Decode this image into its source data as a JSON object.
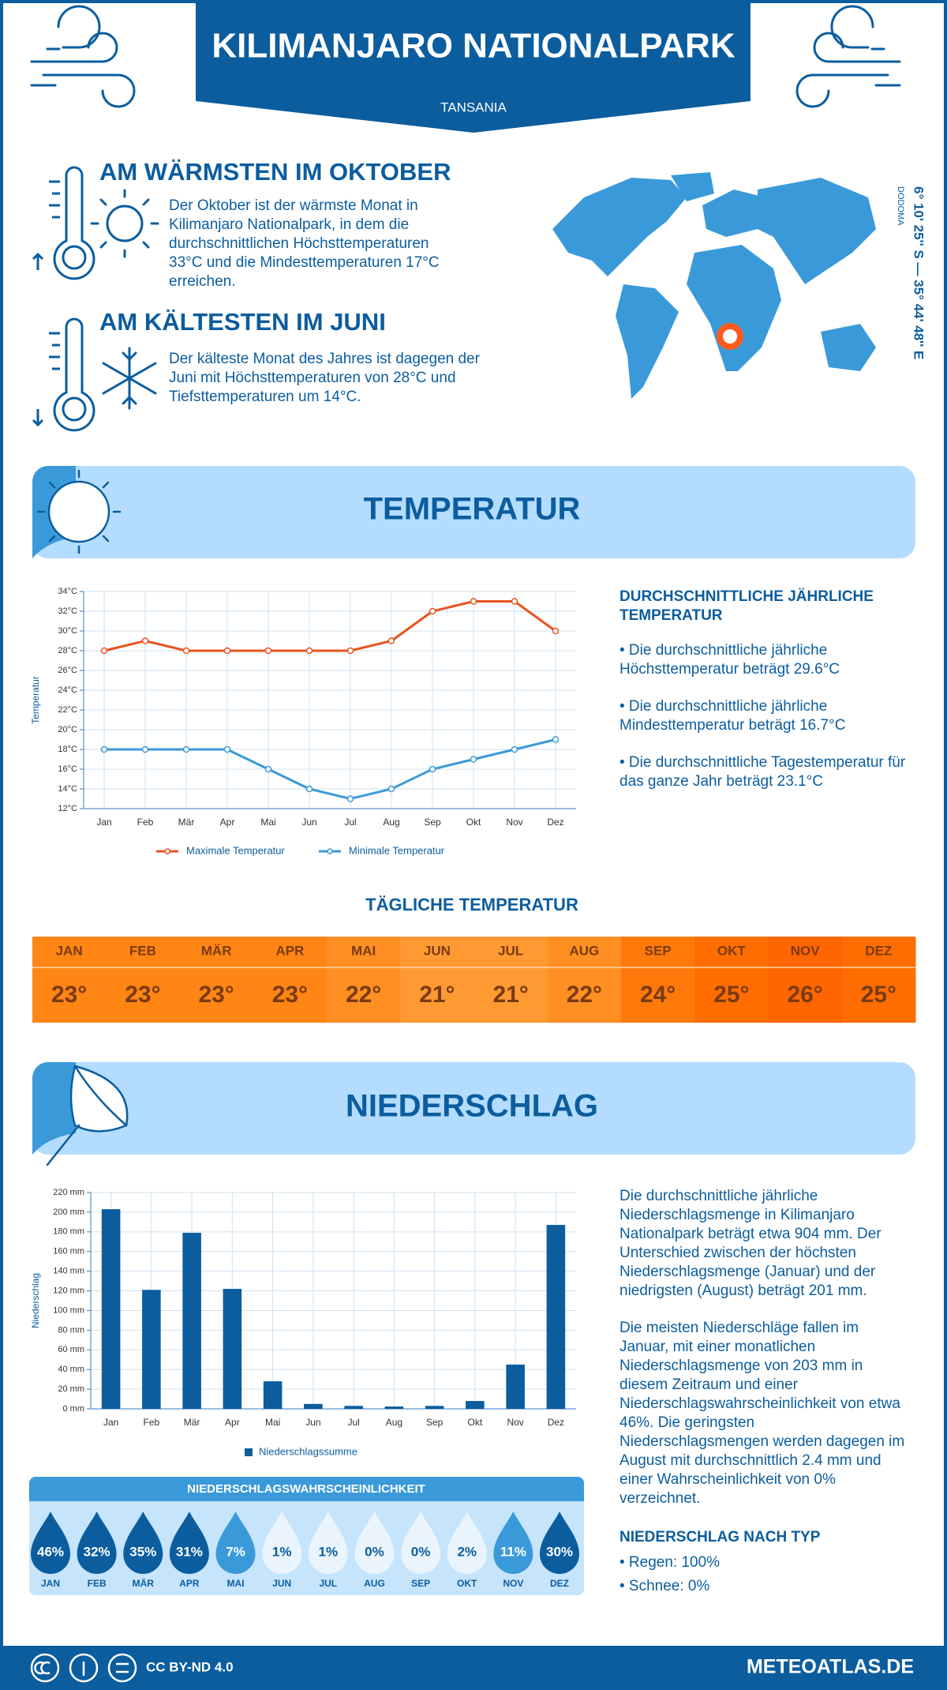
{
  "header": {
    "title": "KILIMANJARO NATIONALPARK",
    "subtitle": "TANSANIA"
  },
  "highlights": [
    {
      "heading": "AM WÄRMSTEN IM OKTOBER",
      "text": "Der Oktober ist der wärmste Monat in Kilimanjaro Nationalpark, in dem die durchschnittlichen Höchsttemperaturen 33°C und die Mindesttemperaturen 17°C erreichen."
    },
    {
      "heading": "AM KÄLTESTEN IM JUNI",
      "text": "Der kälteste Monat des Jahres ist dagegen der Juni mit Höchsttemperaturen von 28°C und Tiefsttemperaturen um 14°C."
    }
  ],
  "location": {
    "coordinates": "6° 10' 25'' S — 35° 44' 48'' E",
    "city": "DODOMA"
  },
  "temperature_section": {
    "title": "TEMPERATUR",
    "summary_heading": "DURCHSCHNITTLICHE JÄHRLICHE TEMPERATUR",
    "summary_points": [
      "• Die durchschnittliche jährliche Höchsttemperatur beträgt 29.6°C",
      "• Die durchschnittliche jährliche Mindesttemperatur beträgt 16.7°C",
      "• Die durchschnittliche Tagestemperatur für das ganze Jahr beträgt 23.1°C"
    ]
  },
  "daily_temperature": {
    "title": "TÄGLICHE TEMPERATUR",
    "months": [
      "JAN",
      "FEB",
      "MÄR",
      "APR",
      "MAI",
      "JUN",
      "JUL",
      "AUG",
      "SEP",
      "OKT",
      "NOV",
      "DEZ"
    ],
    "values": [
      "23°",
      "23°",
      "23°",
      "23°",
      "22°",
      "21°",
      "21°",
      "22°",
      "24°",
      "25°",
      "26°",
      "25°"
    ],
    "colors": [
      "#ff8514",
      "#ff8514",
      "#ff8514",
      "#ff8514",
      "#ff8f22",
      "#ff9a32",
      "#ff9a32",
      "#ff8f22",
      "#ff7a0a",
      "#ff6d00",
      "#ff6500",
      "#ff6d00"
    ]
  },
  "precipitation_section": {
    "title": "NIEDERSCHLAG",
    "paragraphs": [
      "Die durchschnittliche jährliche Niederschlagsmenge in Kilimanjaro Nationalpark beträgt etwa 904 mm. Der Unterschied zwischen der höchsten Niederschlagsmenge (Januar) und der niedrigsten (August) beträgt 201 mm.",
      "Die meisten Niederschläge fallen im Januar, mit einer monatlichen Niederschlagsmenge von 203 mm in diesem Zeitraum und einer Niederschlagswahrscheinlichkeit von etwa 46%. Die geringsten Niederschlagsmengen werden dagegen im August mit durchschnittlich 2.4 mm und einer Wahrscheinlichkeit von 0% verzeichnet."
    ],
    "type_heading": "NIEDERSCHLAG NACH TYP",
    "type_points": [
      "• Regen: 100%",
      "• Schnee: 0%"
    ]
  },
  "precipitation_probability": {
    "title": "NIEDERSCHLAGSWAHRSCHEINLICHKEIT",
    "months": [
      "JAN",
      "FEB",
      "MÄR",
      "APR",
      "MAI",
      "JUN",
      "JUL",
      "AUG",
      "SEP",
      "OKT",
      "NOV",
      "DEZ"
    ],
    "values": [
      "46%",
      "32%",
      "35%",
      "31%",
      "7%",
      "1%",
      "1%",
      "0%",
      "0%",
      "2%",
      "11%",
      "30%"
    ],
    "colors": [
      "#0b5d9e",
      "#0b5d9e",
      "#0b5d9e",
      "#0b5d9e",
      "#3a9ad9",
      "#eaf4fc",
      "#eaf4fc",
      "#eaf4fc",
      "#eaf4fc",
      "#eaf4fc",
      "#3a9ad9",
      "#0b5d9e"
    ]
  },
  "footer": {
    "license": "CC BY-ND 4.0",
    "site": "METEOATLAS.DE"
  },
  "chart_data": [
    {
      "type": "line",
      "categories": [
        "Jan",
        "Feb",
        "Mär",
        "Apr",
        "Mai",
        "Jun",
        "Jul",
        "Aug",
        "Sep",
        "Okt",
        "Nov",
        "Dez"
      ],
      "series": [
        {
          "name": "Maximale Temperatur",
          "color": "#e8531f",
          "values": [
            28,
            29,
            28,
            28,
            28,
            28,
            28,
            29,
            32,
            33,
            33,
            30
          ]
        },
        {
          "name": "Minimale Temperatur",
          "color": "#3a9ad9",
          "values": [
            18,
            18,
            18,
            18,
            16,
            14,
            13,
            14,
            16,
            17,
            18,
            19
          ]
        }
      ],
      "ylabel": "Temperatur",
      "ylim": [
        12,
        34
      ],
      "yticks": [
        {
          "value": 12,
          "label": "12°C"
        },
        {
          "value": 14,
          "label": "14°C"
        },
        {
          "value": 16,
          "label": "16°C"
        },
        {
          "value": 18,
          "label": "18°C"
        },
        {
          "value": 20,
          "label": "20°C"
        },
        {
          "value": 22,
          "label": "22°C"
        },
        {
          "value": 24,
          "label": "24°C"
        },
        {
          "value": 26,
          "label": "26°C"
        },
        {
          "value": 28,
          "label": "28°C"
        },
        {
          "value": 30,
          "label": "30°C"
        },
        {
          "value": 32,
          "label": "32°C"
        },
        {
          "value": 34,
          "label": "34°C"
        }
      ],
      "grid": true
    },
    {
      "type": "bar",
      "categories": [
        "Jan",
        "Feb",
        "Mär",
        "Apr",
        "Mai",
        "Jun",
        "Jul",
        "Aug",
        "Sep",
        "Okt",
        "Nov",
        "Dez"
      ],
      "series": [
        {
          "name": "Niederschlagssumme",
          "color": "#0b5d9e",
          "values": [
            203,
            121,
            179,
            122,
            28,
            5,
            3,
            2.4,
            3,
            8,
            45,
            187
          ]
        }
      ],
      "ylabel": "Niederschlag",
      "ylim": [
        0,
        220
      ],
      "yticks": [
        {
          "value": 0,
          "label": "0 mm"
        },
        {
          "value": 20,
          "label": "20 mm"
        },
        {
          "value": 40,
          "label": "40 mm"
        },
        {
          "value": 60,
          "label": "60 mm"
        },
        {
          "value": 80,
          "label": "80 mm"
        },
        {
          "value": 100,
          "label": "100 mm"
        },
        {
          "value": 120,
          "label": "120 mm"
        },
        {
          "value": 140,
          "label": "140 mm"
        },
        {
          "value": 160,
          "label": "160 mm"
        },
        {
          "value": 180,
          "label": "180 mm"
        },
        {
          "value": 200,
          "label": "200 mm"
        },
        {
          "value": 220,
          "label": "220 mm"
        }
      ],
      "grid": true
    }
  ]
}
